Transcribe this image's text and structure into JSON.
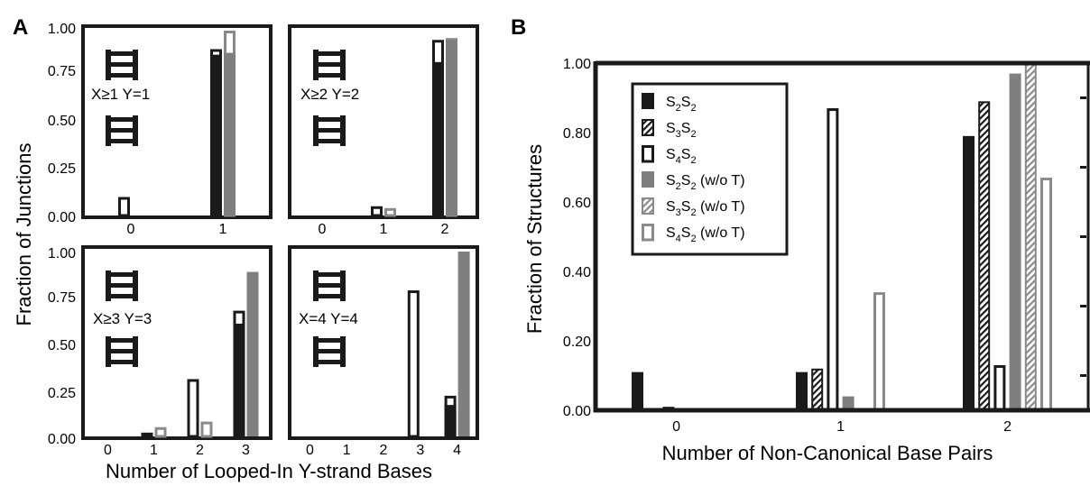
{
  "panel_labels": {
    "a": "A",
    "b": "B"
  },
  "panel_a": {
    "ylabel": "Fraction of Junctions",
    "xlabel": "Number of Looped-In Y-strand Bases",
    "yticks": [
      "0.00",
      "0.25",
      "0.50",
      "0.75",
      "1.00"
    ],
    "series_styles": [
      "black-fill",
      "black-outline",
      "gray-fill",
      "gray-outline"
    ]
  },
  "panel_b": {
    "ylabel": "Fraction of Structures",
    "xlabel": "Number of Non-Canonical Base Pairs",
    "yticks": [
      "0.00",
      "0.20",
      "0.40",
      "0.60",
      "0.80",
      "1.00"
    ],
    "legend": [
      {
        "main": "S",
        "sub1": "2",
        "mid": "S",
        "sub2": "2",
        "tail": "",
        "style": "black-fill"
      },
      {
        "main": "S",
        "sub1": "3",
        "mid": "S",
        "sub2": "2",
        "tail": "",
        "style": "black-hatch"
      },
      {
        "main": "S",
        "sub1": "4",
        "mid": "S",
        "sub2": "2",
        "tail": "",
        "style": "black-outline"
      },
      {
        "main": "S",
        "sub1": "2",
        "mid": "S",
        "sub2": "2",
        "tail": " (w/o T)",
        "style": "gray-fill"
      },
      {
        "main": "S",
        "sub1": "3",
        "mid": "S",
        "sub2": "2",
        "tail": " (w/o T)",
        "style": "gray-hatch"
      },
      {
        "main": "S",
        "sub1": "4",
        "mid": "S",
        "sub2": "2",
        "tail": " (w/o T)",
        "style": "gray-outline"
      }
    ]
  },
  "colors": {
    "black": "#1a1a1a",
    "gray": "#7f7f7f",
    "white": "#ffffff"
  },
  "icons": [
    "ladder-icon"
  ],
  "chart_data": [
    {
      "type": "bar",
      "panel": "A, top-left",
      "annotation": "X≥1 Y=1",
      "categories": [
        "0",
        "1"
      ],
      "ylim": [
        0,
        1
      ],
      "yticks": [
        "0.00",
        "0.25",
        "0.50",
        "0.75",
        "1.00"
      ],
      "values": {
        "black_fill": [
          0,
          0.87
        ],
        "black_outline": [
          0.1,
          0.9
        ],
        "gray_fill": [
          0,
          0.88
        ],
        "gray_outline": [
          0,
          1.0
        ]
      }
    },
    {
      "type": "bar",
      "panel": "A, top-right",
      "annotation": "X≥2 Y=2",
      "categories": [
        "0",
        "1",
        "2"
      ],
      "ylim": [
        0,
        1
      ],
      "values": {
        "black_fill": [
          0,
          0,
          0.83
        ],
        "black_outline": [
          0,
          0.05,
          0.95
        ],
        "gray_fill": [
          0,
          0,
          0.95
        ],
        "gray_outline": [
          0,
          0.04,
          0.96
        ]
      }
    },
    {
      "type": "bar",
      "panel": "A, bottom-left",
      "annotation": "X≥3 Y=3",
      "categories": [
        "0",
        "1",
        "2",
        "3"
      ],
      "ylim": [
        0,
        1
      ],
      "yticks": [
        "0.00",
        "0.25",
        "0.50",
        "0.75",
        "1.00"
      ],
      "values": {
        "black_fill": [
          0,
          0.02,
          0,
          0.61
        ],
        "black_outline": [
          0,
          0.02,
          0.31,
          0.68
        ],
        "gray_fill": [
          0,
          0,
          0,
          0.89
        ],
        "gray_outline": [
          0,
          0.05,
          0.08,
          0
        ]
      }
    },
    {
      "type": "bar",
      "panel": "A, bottom-right",
      "annotation": "X=4 Y=4",
      "categories": [
        "0",
        "1",
        "2",
        "3",
        "4"
      ],
      "ylim": [
        0,
        1
      ],
      "values": {
        "black_fill": [
          0,
          0,
          0,
          0,
          0.17
        ],
        "black_outline": [
          0,
          0,
          0,
          0.79,
          0.22
        ],
        "gray_fill": [
          0,
          0,
          0,
          0,
          1.0
        ],
        "gray_outline": [
          0,
          0,
          0,
          0,
          0
        ]
      }
    },
    {
      "type": "bar",
      "panel": "B",
      "categories": [
        "0",
        "1",
        "2"
      ],
      "ylim": [
        0,
        1
      ],
      "yticks": [
        "0.00",
        "0.20",
        "0.40",
        "0.60",
        "0.80",
        "1.00"
      ],
      "xlabel": "Number of Non-Canonical Base Pairs",
      "ylabel": "Fraction of Structures",
      "legend_position": "top-left",
      "series": [
        {
          "name": "S2S2",
          "style": "black-fill",
          "values": [
            0.11,
            0.11,
            0.79
          ]
        },
        {
          "name": "S3S2",
          "style": "black-hatch",
          "values": [
            0,
            0.12,
            0.89
          ]
        },
        {
          "name": "S4S2",
          "style": "black-outline",
          "values": [
            0.01,
            0.87,
            0.13
          ]
        },
        {
          "name": "S2S2 (w/o T)",
          "style": "gray-fill",
          "values": [
            0,
            0.04,
            0.97
          ]
        },
        {
          "name": "S3S2 (w/o T)",
          "style": "gray-hatch",
          "values": [
            0,
            0,
            1.0
          ]
        },
        {
          "name": "S4S2 (w/o T)",
          "style": "gray-outline",
          "values": [
            0,
            0.34,
            0.67
          ]
        }
      ]
    }
  ]
}
